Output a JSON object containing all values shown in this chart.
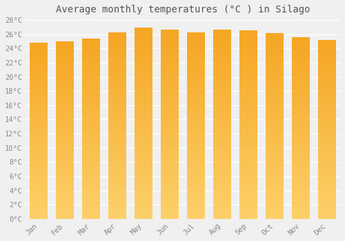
{
  "title": "Average monthly temperatures (°C ) in Silago",
  "months": [
    "Jan",
    "Feb",
    "Mar",
    "Apr",
    "May",
    "Jun",
    "Jul",
    "Aug",
    "Sep",
    "Oct",
    "Nov",
    "Dec"
  ],
  "values": [
    24.8,
    25.0,
    25.4,
    26.2,
    26.9,
    26.6,
    26.2,
    26.6,
    26.5,
    26.1,
    25.5,
    25.2
  ],
  "bar_color_top": "#F5A623",
  "bar_color_bottom": "#FDD06A",
  "background_color": "#F0F0F0",
  "grid_color": "#FFFFFF",
  "ylim": [
    0,
    28
  ],
  "ytick_step": 2,
  "title_fontsize": 10,
  "tick_fontsize": 7.5,
  "font_family": "monospace"
}
